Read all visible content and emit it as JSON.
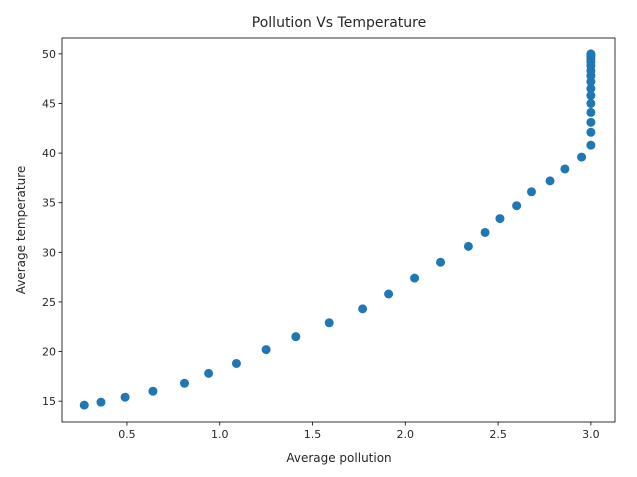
{
  "chart_data": {
    "type": "scatter",
    "title": "Pollution Vs Temperature",
    "xlabel": "Average pollution",
    "ylabel": "Average temperature",
    "xlim": [
      0.15,
      3.13
    ],
    "ylim": [
      12.9,
      51.6
    ],
    "xticks": [
      0.5,
      1.0,
      1.5,
      2.0,
      2.5,
      3.0
    ],
    "xtick_labels": [
      "0.5",
      "1.0",
      "1.5",
      "2.0",
      "2.5",
      "3.0"
    ],
    "yticks": [
      15,
      20,
      25,
      30,
      35,
      40,
      45,
      50
    ],
    "ytick_labels": [
      "15",
      "20",
      "25",
      "30",
      "35",
      "40",
      "45",
      "50"
    ],
    "grid": false,
    "marker_color": "#1f77b4",
    "points": [
      {
        "x": 0.27,
        "y": 14.6
      },
      {
        "x": 0.36,
        "y": 14.9
      },
      {
        "x": 0.49,
        "y": 15.4
      },
      {
        "x": 0.64,
        "y": 16.0
      },
      {
        "x": 0.81,
        "y": 16.8
      },
      {
        "x": 0.94,
        "y": 17.8
      },
      {
        "x": 1.09,
        "y": 18.8
      },
      {
        "x": 1.25,
        "y": 20.2
      },
      {
        "x": 1.41,
        "y": 21.5
      },
      {
        "x": 1.59,
        "y": 22.9
      },
      {
        "x": 1.77,
        "y": 24.3
      },
      {
        "x": 1.91,
        "y": 25.8
      },
      {
        "x": 2.05,
        "y": 27.4
      },
      {
        "x": 2.19,
        "y": 29.0
      },
      {
        "x": 2.34,
        "y": 30.6
      },
      {
        "x": 2.43,
        "y": 32.0
      },
      {
        "x": 2.51,
        "y": 33.4
      },
      {
        "x": 2.6,
        "y": 34.7
      },
      {
        "x": 2.68,
        "y": 36.1
      },
      {
        "x": 2.78,
        "y": 37.2
      },
      {
        "x": 2.86,
        "y": 38.4
      },
      {
        "x": 2.95,
        "y": 39.6
      },
      {
        "x": 3.0,
        "y": 40.8
      },
      {
        "x": 3.0,
        "y": 42.1
      },
      {
        "x": 3.0,
        "y": 43.1
      },
      {
        "x": 3.0,
        "y": 44.1
      },
      {
        "x": 3.0,
        "y": 45.0
      },
      {
        "x": 3.0,
        "y": 45.8
      },
      {
        "x": 3.0,
        "y": 46.5
      },
      {
        "x": 3.0,
        "y": 47.2
      },
      {
        "x": 3.0,
        "y": 47.8
      },
      {
        "x": 3.0,
        "y": 48.3
      },
      {
        "x": 3.0,
        "y": 48.8
      },
      {
        "x": 3.0,
        "y": 49.2
      },
      {
        "x": 3.0,
        "y": 49.5
      },
      {
        "x": 3.0,
        "y": 49.75
      },
      {
        "x": 3.0,
        "y": 49.9
      },
      {
        "x": 3.0,
        "y": 50.0
      }
    ]
  }
}
